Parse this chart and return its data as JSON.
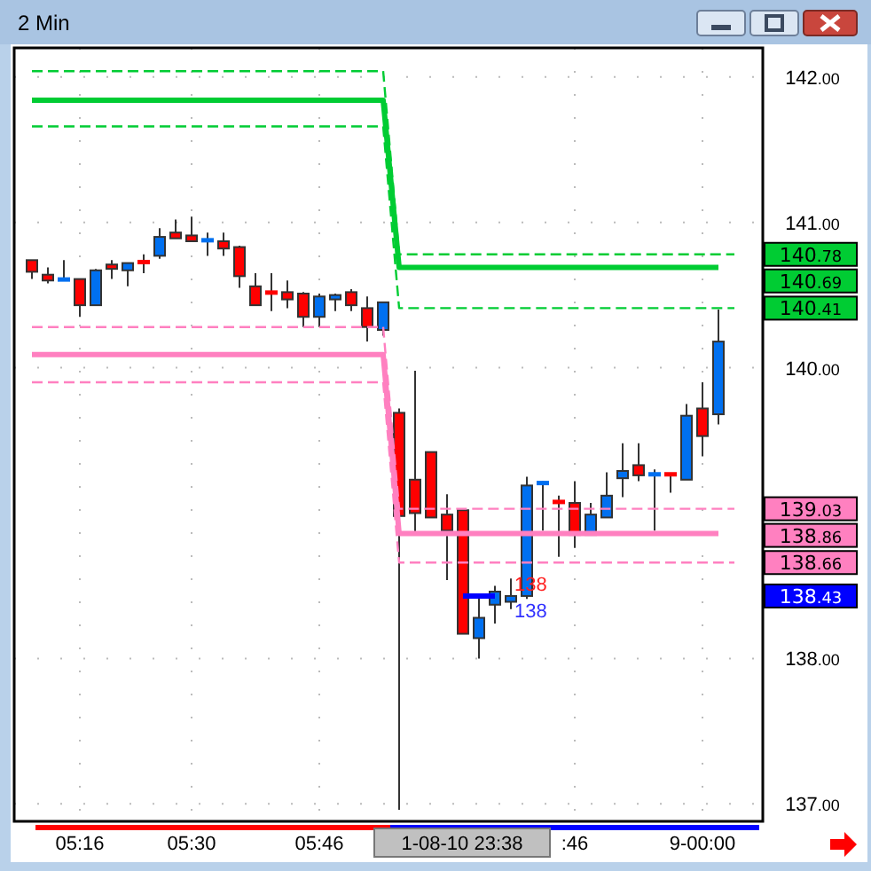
{
  "chart_data": {
    "type": "candlestick",
    "title": "2 Min",
    "categories": [
      null,
      null,
      null,
      "05:16",
      null,
      null,
      null,
      null,
      null,
      null,
      "05:30",
      null,
      null,
      null,
      null,
      null,
      null,
      null,
      "05:46",
      null,
      null,
      null,
      null,
      null,
      null,
      null,
      null,
      null,
      null,
      null,
      null,
      null,
      null,
      null,
      ":46",
      null,
      null,
      null,
      null,
      null,
      null,
      null,
      "9-00:00",
      null,
      null,
      null
    ],
    "ohlc": [
      [
        140.74,
        140.74,
        140.61,
        140.66
      ],
      [
        140.64,
        140.69,
        140.58,
        140.6
      ],
      [
        140.6,
        140.74,
        140.6,
        140.61
      ],
      [
        140.61,
        140.61,
        140.35,
        140.43
      ],
      [
        140.43,
        140.68,
        140.43,
        140.67
      ],
      [
        140.71,
        140.74,
        140.61,
        140.68
      ],
      [
        140.67,
        140.72,
        140.56,
        140.72
      ],
      [
        140.73,
        140.78,
        140.65,
        140.72
      ],
      [
        140.77,
        140.96,
        140.75,
        140.9
      ],
      [
        140.93,
        141.02,
        140.89,
        140.89
      ],
      [
        140.91,
        141.04,
        140.87,
        140.87
      ],
      [
        140.87,
        140.93,
        140.77,
        140.88
      ],
      [
        140.87,
        140.93,
        140.77,
        140.82
      ],
      [
        140.83,
        140.84,
        140.55,
        140.63
      ],
      [
        140.56,
        140.65,
        140.43,
        140.43
      ],
      [
        140.52,
        140.65,
        140.39,
        140.51
      ],
      [
        140.52,
        140.6,
        140.41,
        140.47
      ],
      [
        140.51,
        140.52,
        140.28,
        140.35
      ],
      [
        140.35,
        140.51,
        140.28,
        140.49
      ],
      [
        140.47,
        140.51,
        140.39,
        140.5
      ],
      [
        140.52,
        140.54,
        140.39,
        140.43
      ],
      [
        140.41,
        140.49,
        140.18,
        140.28
      ],
      [
        140.26,
        140.45,
        140.22,
        140.45
      ],
      [
        139.69,
        139.72,
        136.96,
        138.98
      ],
      [
        139.23,
        139.98,
        138.87,
        139.0
      ],
      [
        139.42,
        139.42,
        138.97,
        138.97
      ],
      [
        138.99,
        139.13,
        138.54,
        138.88
      ],
      [
        139.02,
        139.02,
        138.17,
        138.17
      ],
      [
        138.14,
        138.43,
        138.0,
        138.28
      ],
      [
        138.37,
        138.5,
        138.24,
        138.46
      ],
      [
        138.39,
        138.55,
        138.34,
        138.43
      ],
      [
        138.43,
        139.25,
        138.41,
        139.19
      ],
      [
        139.2,
        139.22,
        138.88,
        139.21
      ],
      [
        139.08,
        139.12,
        138.7,
        139.07
      ],
      [
        139.07,
        139.22,
        138.76,
        138.85
      ],
      [
        138.85,
        139.07,
        138.85,
        138.99
      ],
      [
        138.97,
        139.28,
        138.97,
        139.12
      ],
      [
        139.24,
        139.48,
        139.11,
        139.29
      ],
      [
        139.33,
        139.48,
        139.22,
        139.26
      ],
      [
        139.26,
        139.3,
        138.88,
        139.27
      ],
      [
        139.27,
        139.27,
        139.14,
        139.26
      ],
      [
        139.23,
        139.75,
        139.23,
        139.67
      ],
      [
        139.72,
        139.9,
        139.39,
        139.53
      ],
      [
        139.68,
        140.4,
        139.61,
        140.18
      ],
      null,
      null
    ],
    "colors": [
      "#ff0000",
      "#ff0000",
      "#0070f0",
      "#ff0000",
      "#0070f0",
      "#ff0000",
      "#0070f0",
      "#ff0000",
      "#0070f0",
      "#ff0000",
      "#ff0000",
      "#0070f0",
      "#ff0000",
      "#ff0000",
      "#ff0000",
      "#ff0000",
      "#ff0000",
      "#ff0000",
      "#0070f0",
      "#0070f0",
      "#ff0000",
      "#ff0000",
      "#0070f0",
      "#ff0000",
      "#ff0000",
      "#ff0000",
      "#ff0000",
      "#ff0000",
      "#0070f0",
      "#0070f0",
      "#0070f0",
      "#0070f0",
      "#0070f0",
      "#ff0000",
      "#ff0000",
      "#0070f0",
      "#0070f0",
      "#0070f0",
      "#ff0000",
      "#0070f0",
      "#ff0000",
      "#0070f0",
      "#ff0000",
      "#0070f0",
      null,
      null
    ],
    "series": [
      {
        "type": "line",
        "color": "#00cc33",
        "line_style": "dashed",
        "values": [
          142.04,
          142.04,
          142.04,
          142.04,
          142.04,
          142.04,
          142.04,
          142.04,
          142.04,
          142.04,
          142.04,
          142.04,
          142.04,
          142.04,
          142.04,
          142.04,
          142.04,
          142.04,
          142.04,
          142.04,
          142.04,
          142.04,
          142.04,
          140.78,
          140.78,
          140.78,
          140.78,
          140.78,
          140.78,
          140.78,
          140.78,
          140.78,
          140.78,
          140.78,
          140.78,
          140.78,
          140.78,
          140.78,
          140.78,
          140.78,
          140.78,
          140.78,
          140.78,
          140.78,
          140.78,
          null
        ]
      },
      {
        "type": "line",
        "color": "#00cc33",
        "line_style": "solid",
        "values": [
          141.84,
          141.84,
          141.84,
          141.84,
          141.84,
          141.84,
          141.84,
          141.84,
          141.84,
          141.84,
          141.84,
          141.84,
          141.84,
          141.84,
          141.84,
          141.84,
          141.84,
          141.84,
          141.84,
          141.84,
          141.84,
          141.84,
          141.84,
          140.69,
          140.69,
          140.69,
          140.69,
          140.69,
          140.69,
          140.69,
          140.69,
          140.69,
          140.69,
          140.69,
          140.69,
          140.69,
          140.69,
          140.69,
          140.69,
          140.69,
          140.69,
          140.69,
          140.69,
          140.69,
          null,
          null
        ]
      },
      {
        "type": "line",
        "color": "#00cc33",
        "line_style": "dashed",
        "values": [
          141.66,
          141.66,
          141.66,
          141.66,
          141.66,
          141.66,
          141.66,
          141.66,
          141.66,
          141.66,
          141.66,
          141.66,
          141.66,
          141.66,
          141.66,
          141.66,
          141.66,
          141.66,
          141.66,
          141.66,
          141.66,
          141.66,
          141.66,
          140.41,
          140.41,
          140.41,
          140.41,
          140.41,
          140.41,
          140.41,
          140.41,
          140.41,
          140.41,
          140.41,
          140.41,
          140.41,
          140.41,
          140.41,
          140.41,
          140.41,
          140.41,
          140.41,
          140.41,
          140.41,
          140.41,
          null
        ]
      },
      {
        "type": "line",
        "color": "#ff80c0",
        "line_style": "dashed",
        "values": [
          140.28,
          140.28,
          140.28,
          140.28,
          140.28,
          140.28,
          140.28,
          140.28,
          140.28,
          140.28,
          140.28,
          140.28,
          140.28,
          140.28,
          140.28,
          140.28,
          140.28,
          140.28,
          140.28,
          140.28,
          140.28,
          140.28,
          140.28,
          139.03,
          139.03,
          139.03,
          139.03,
          139.03,
          139.03,
          139.03,
          139.03,
          139.03,
          139.03,
          139.03,
          139.03,
          139.03,
          139.03,
          139.03,
          139.03,
          139.03,
          139.03,
          139.03,
          139.03,
          139.03,
          139.03,
          null
        ]
      },
      {
        "type": "line",
        "color": "#ff80c0",
        "line_style": "solid",
        "values": [
          140.09,
          140.09,
          140.09,
          140.09,
          140.09,
          140.09,
          140.09,
          140.09,
          140.09,
          140.09,
          140.09,
          140.09,
          140.09,
          140.09,
          140.09,
          140.09,
          140.09,
          140.09,
          140.09,
          140.09,
          140.09,
          140.09,
          140.09,
          138.86,
          138.86,
          138.86,
          138.86,
          138.86,
          138.86,
          138.86,
          138.86,
          138.86,
          138.86,
          138.86,
          138.86,
          138.86,
          138.86,
          138.86,
          138.86,
          138.86,
          138.86,
          138.86,
          138.86,
          138.86,
          null,
          null
        ]
      },
      {
        "type": "line",
        "color": "#ff80c0",
        "line_style": "dashed",
        "values": [
          139.9,
          139.9,
          139.9,
          139.9,
          139.9,
          139.9,
          139.9,
          139.9,
          139.9,
          139.9,
          139.9,
          139.9,
          139.9,
          139.9,
          139.9,
          139.9,
          139.9,
          139.9,
          139.9,
          139.9,
          139.9,
          139.9,
          139.9,
          138.66,
          138.66,
          138.66,
          138.66,
          138.66,
          138.66,
          138.66,
          138.66,
          138.66,
          138.66,
          138.66,
          138.66,
          138.66,
          138.66,
          138.66,
          138.66,
          138.66,
          138.66,
          138.66,
          138.66,
          138.66,
          138.66,
          null
        ]
      },
      {
        "type": "line",
        "color": "#0000ff",
        "line_style": "solid",
        "values": [
          null,
          null,
          null,
          null,
          null,
          null,
          null,
          null,
          null,
          null,
          null,
          null,
          null,
          null,
          null,
          null,
          null,
          null,
          null,
          null,
          null,
          null,
          null,
          null,
          null,
          null,
          null,
          138.43,
          138.43,
          138.43,
          null,
          null,
          null,
          null,
          null,
          null,
          null,
          null,
          null,
          null,
          null,
          null,
          null,
          null,
          null,
          null
        ]
      }
    ],
    "ylim": [
      136.88,
      142.2
    ],
    "yticks": [
      {
        "value": 137,
        "label": "137.00"
      },
      {
        "value": 138,
        "label": "138.00"
      },
      {
        "value": 140,
        "label": "140.00"
      },
      {
        "value": 141,
        "label": "141.00"
      },
      {
        "value": 142,
        "label": "142.00"
      }
    ],
    "grid": true,
    "annotations": [
      "138",
      "138",
      "1-08-10 23:38",
      "140.78",
      "140.69",
      "140.41",
      "139.03",
      "138.86",
      "138.66",
      "138.43"
    ]
  }
}
